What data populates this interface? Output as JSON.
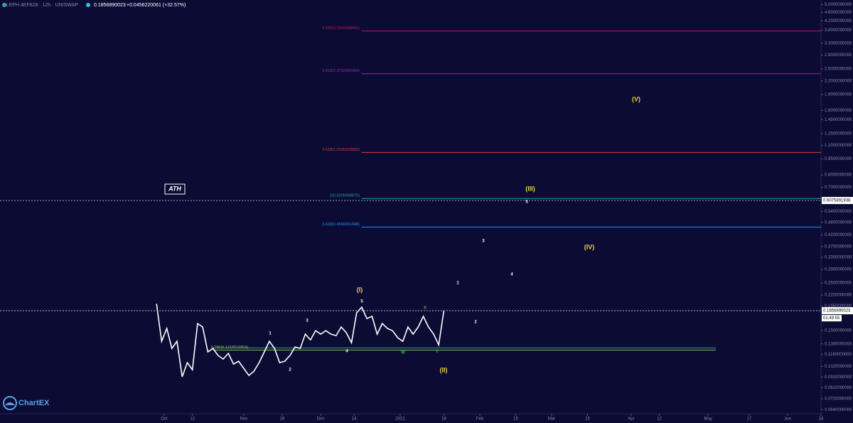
{
  "header": {
    "symbol": "ALEPH.4EF628 · 12h · UNISWAP",
    "price": "0.1856890023",
    "change": "+0.0456220061 (+32.57%)"
  },
  "footer": {
    "logo": "ChartEX"
  },
  "chart_data": {
    "type": "line",
    "log_scale": true,
    "x": [
      272,
      274,
      276,
      278,
      280,
      282,
      284,
      286,
      288,
      290,
      292,
      294,
      296,
      298,
      300,
      302,
      304,
      306,
      308,
      310,
      312,
      314,
      316,
      318,
      320,
      322,
      324,
      326,
      328,
      330,
      332,
      334,
      336,
      338,
      340,
      342,
      344,
      346,
      348,
      350,
      352,
      354,
      356,
      358,
      360,
      362,
      364,
      366,
      368,
      370,
      372,
      374,
      376,
      378,
      380,
      382,
      384
    ],
    "series": [
      {
        "color": "#ffffff",
        "values": [
          0.2,
          0.1336,
          0.1534,
          0.1238,
          0.1336,
          0.0912,
          0.1062,
          0.0984,
          0.1618,
          0.1558,
          0.1192,
          0.1238,
          0.1147,
          0.1104,
          0.1174,
          0.1046,
          0.1079,
          0.0999,
          0.0926,
          0.0969,
          0.1062,
          0.1192,
          0.1336,
          0.1238,
          0.1062,
          0.1079,
          0.1147,
          0.1257,
          0.1238,
          0.1443,
          0.1357,
          0.1499,
          0.1443,
          0.1499,
          0.1443,
          0.142,
          0.1558,
          0.1465,
          0.1316,
          0.1815,
          0.1929,
          0.1707,
          0.1747,
          0.1443,
          0.1618,
          0.1534,
          0.1499,
          0.1389,
          0.1336,
          0.1558,
          0.1443,
          0.1558,
          0.1747,
          0.1558,
          0.1443,
          0.1286,
          0.1856890023
        ]
      }
    ],
    "xlim": [
      211,
      531
    ],
    "xticks": [
      {
        "value": 275,
        "label": "Oct"
      },
      {
        "value": 286,
        "label": "12"
      },
      {
        "value": 306,
        "label": "Nov"
      },
      {
        "value": 321,
        "label": "16"
      },
      {
        "value": 336,
        "label": "Dec"
      },
      {
        "value": 349,
        "label": "14"
      },
      {
        "value": 367,
        "label": "2021"
      },
      {
        "value": 384,
        "label": "18"
      },
      {
        "value": 398,
        "label": "Feb"
      },
      {
        "value": 412,
        "label": "15"
      },
      {
        "value": 426,
        "label": "Mar"
      },
      {
        "value": 440,
        "label": "15"
      },
      {
        "value": 457,
        "label": "Apr"
      },
      {
        "value": 468,
        "label": "12"
      },
      {
        "value": 487,
        "label": "May"
      },
      {
        "value": 503,
        "label": "17"
      },
      {
        "value": 518,
        "label": "Jun"
      },
      {
        "value": 531,
        "label": "14"
      }
    ],
    "ylim": [
      0.0613,
      5.25
    ],
    "yticks": [
      {
        "value": 5,
        "label": "5.0000000000"
      },
      {
        "value": 4.6,
        "label": "4.6000000000"
      },
      {
        "value": 4.2,
        "label": "4.2000000000"
      },
      {
        "value": 3.8,
        "label": "3.8000000000"
      },
      {
        "value": 3.3,
        "label": "3.3000000000"
      },
      {
        "value": 2.9,
        "label": "2.9000000000"
      },
      {
        "value": 2.5,
        "label": "2.5000000000"
      },
      {
        "value": 2.2,
        "label": "2.2000000000"
      },
      {
        "value": 1.9,
        "label": "1.9000000000"
      },
      {
        "value": 1.6,
        "label": "1.6000000000"
      },
      {
        "value": 1.45,
        "label": "1.4500000000"
      },
      {
        "value": 1.25,
        "label": "1.2500000000"
      },
      {
        "value": 1.1,
        "label": "1.1000000000"
      },
      {
        "value": 0.95,
        "label": "0.9500000000"
      },
      {
        "value": 0.8,
        "label": "0.8000000000"
      },
      {
        "value": 0.7,
        "label": "0.7000000000"
      },
      {
        "value": 0.54,
        "label": "0.5400000000"
      },
      {
        "value": 0.48,
        "label": "0.4800000000"
      },
      {
        "value": 0.42,
        "label": "0.4200000000"
      },
      {
        "value": 0.37,
        "label": "0.3700000000"
      },
      {
        "value": 0.33,
        "label": "0.3300000000"
      },
      {
        "value": 0.29,
        "label": "0.2900000000"
      },
      {
        "value": 0.25,
        "label": "0.2500000000"
      },
      {
        "value": 0.22,
        "label": "0.2200000000"
      },
      {
        "value": 0.195,
        "label": "0.1950000000"
      },
      {
        "value": 0.15,
        "label": "0.1500000000"
      },
      {
        "value": 0.13,
        "label": "0.1300000000"
      },
      {
        "value": 0.116,
        "label": "0.1160000000"
      },
      {
        "value": 0.102,
        "label": "0.1020000000"
      },
      {
        "value": 0.091,
        "label": "0.0910000000"
      },
      {
        "value": 0.081,
        "label": "0.0810000000"
      },
      {
        "value": 0.072,
        "label": "0.0720000000"
      },
      {
        "value": 0.064,
        "label": "0.0640000000"
      }
    ],
    "grid": false,
    "levels": [
      {
        "label": "4.236(3.7592058441)",
        "value": 3.7592058441,
        "color": "#c2185b"
      },
      {
        "label": "3.618(2.3752680384)",
        "value": 2.3752680384,
        "color": "#9c27b0"
      },
      {
        "label": "2.618(1.0195223582)",
        "value": 1.0195223582,
        "color": "#e53935"
      },
      {
        "label": "2(0.6205968875)",
        "value": 0.6205968875,
        "color": "#26a69a"
      },
      {
        "label": "1.618(0.4566061948)",
        "value": 0.4566061948,
        "color": "#2196f3"
      },
      {
        "label": "0.786(0.1216516904)",
        "value": 0.1216516904,
        "color": "#8bc34a"
      }
    ],
    "ath": {
      "label": "ATH",
      "value": 0.6075891938,
      "value_label": "0.6075891938"
    },
    "current": {
      "value_label": "0.1856890023",
      "countdown": "01:49:55"
    },
    "annotations": [
      {
        "text": "(I)",
        "color": "#f0d048"
      },
      {
        "text": "(II)",
        "color": "#f0d048"
      },
      {
        "text": "(III)",
        "color": "#f0d048"
      },
      {
        "text": "(IV)",
        "color": "#f0d048"
      },
      {
        "text": "(V)",
        "color": "#f0d048"
      },
      {
        "text": "1",
        "color": "#ffffff"
      },
      {
        "text": "2",
        "color": "#ffffff"
      },
      {
        "text": "3",
        "color": "#ffffff"
      },
      {
        "text": "4",
        "color": "#ffffff"
      },
      {
        "text": "5",
        "color": "#ffffff"
      },
      {
        "text": "W",
        "color": "#4caf50"
      },
      {
        "text": "X",
        "color": "#4caf50"
      },
      {
        "text": "Y",
        "color": "#4caf50"
      },
      {
        "text": "1",
        "color": "#ffffff"
      },
      {
        "text": "2",
        "color": "#ffffff"
      },
      {
        "text": "3",
        "color": "#ffffff"
      },
      {
        "text": "4",
        "color": "#ffffff"
      },
      {
        "text": "5",
        "color": "#ffffff"
      }
    ]
  }
}
